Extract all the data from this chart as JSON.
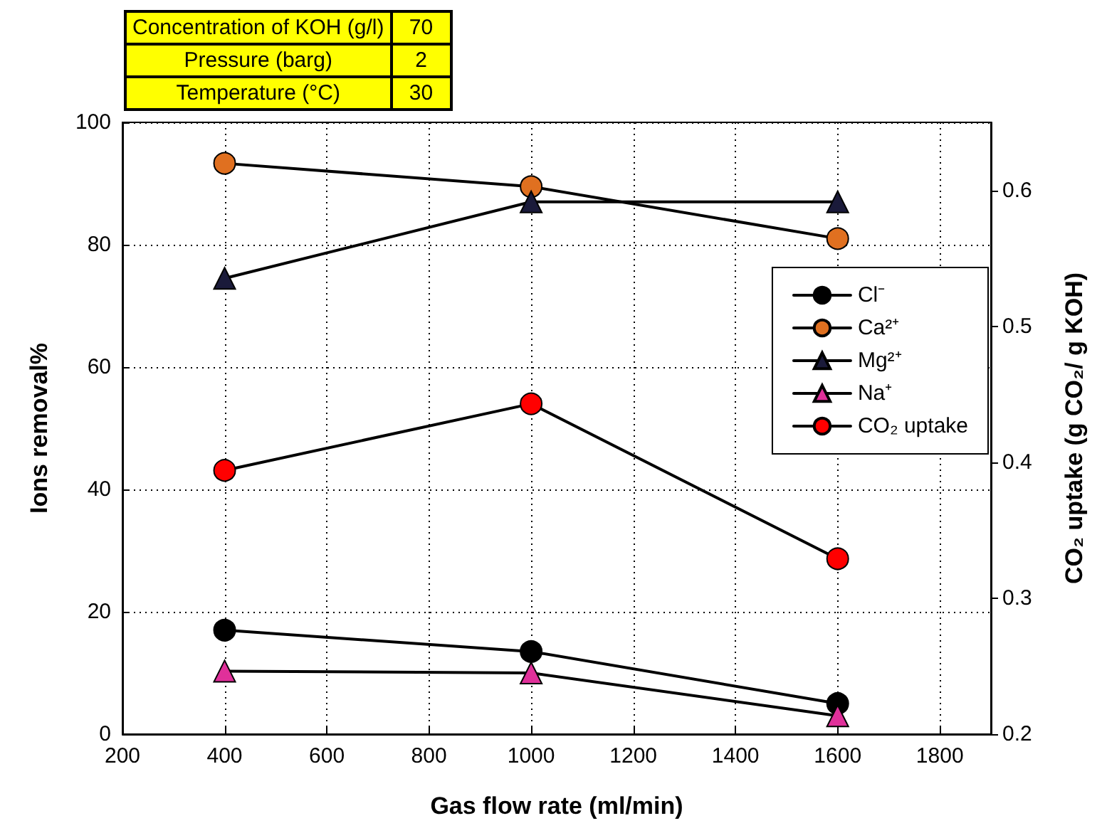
{
  "chart_data": {
    "type": "line",
    "xlabel": "Gas flow rate (ml/min)",
    "ylabel": "Ions removal%",
    "y2label": "CO₂ uptake (g CO₂/ g KOH)",
    "annotations": [
      "Concentration of KOH (g/l)",
      "70",
      "Pressure (barg)",
      "2",
      "Temperature (°C)",
      "30"
    ],
    "x": [
      400,
      1000,
      1600
    ],
    "series": [
      {
        "name": "Cl⁻",
        "color": "#000000",
        "marker": "circle",
        "values": [
          17,
          13.5,
          5
        ]
      },
      {
        "name": "Ca²⁺",
        "color": "#e07020",
        "marker": "circle",
        "values": [
          93.3,
          89.5,
          81
        ]
      },
      {
        "name": "Mg²⁺",
        "color": "#1a1a3a",
        "marker": "triangle",
        "values": [
          74.5,
          87,
          87
        ]
      },
      {
        "name": "Na⁺",
        "color": "#e0309a",
        "marker": "triangle",
        "values": [
          10.3,
          10,
          3
        ]
      },
      {
        "name": "CO₂ uptake",
        "color": "#ff0000",
        "marker": "circle",
        "axis": "y2",
        "values": [
          0.394,
          0.443,
          0.329
        ]
      }
    ],
    "xlim": [
      200,
      1900
    ],
    "xticks": [
      200,
      400,
      600,
      800,
      1000,
      1200,
      1400,
      1600,
      1800
    ],
    "ylim": [
      0,
      100
    ],
    "yticks": [
      0,
      20,
      40,
      60,
      80,
      100
    ],
    "y2lim": [
      0.2,
      0.65
    ],
    "y2ticks": [
      0.2,
      0.3,
      0.4,
      0.5,
      0.6
    ],
    "grid": true,
    "legend": "right"
  }
}
